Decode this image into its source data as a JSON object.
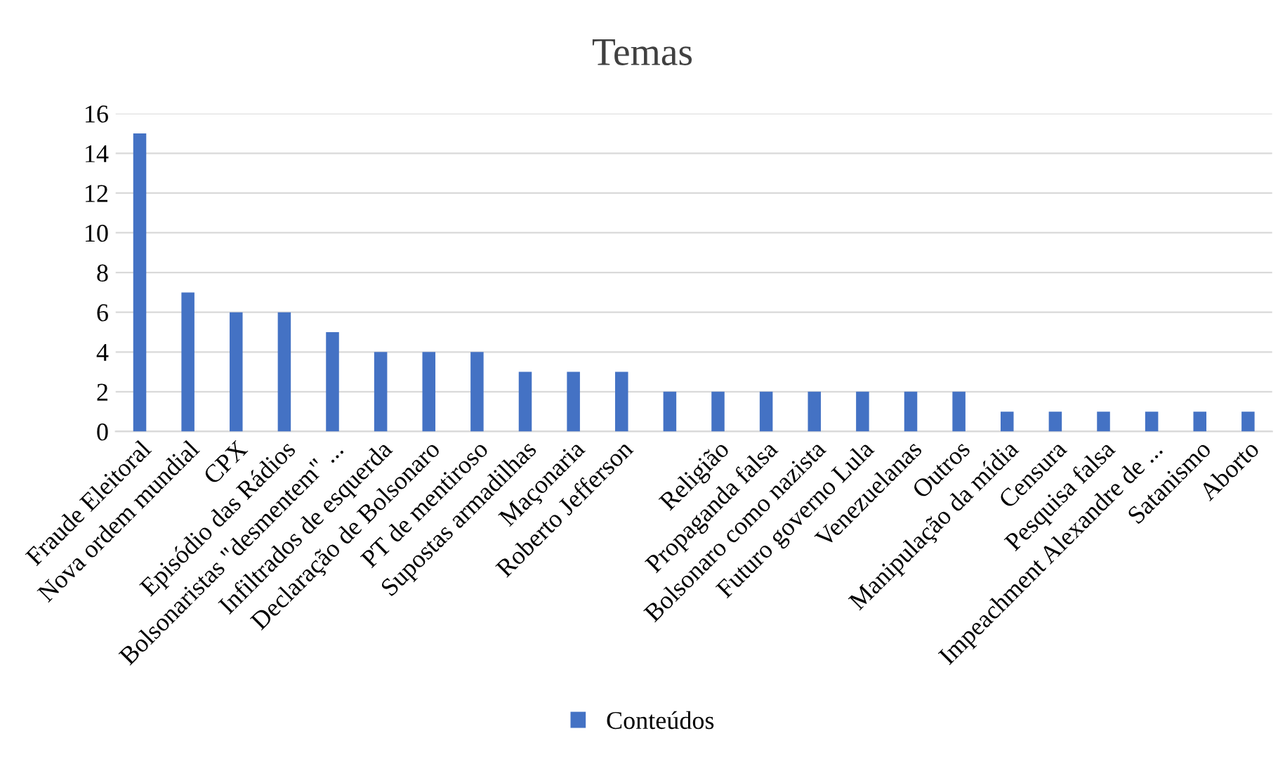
{
  "chart_data": {
    "type": "bar",
    "title": "Temas",
    "categories": [
      "Fraude Eleitoral",
      "Nova ordem mundial",
      "CPX",
      "Episódio das Rádios",
      "Bolsonaristas \"desmentem\" ...",
      "Infiltrados de esquerda",
      "Declaração de Bolsonaro",
      "PT de mentiroso",
      "Supostas armadilhas",
      "Maçonaria",
      "Roberto Jefferson",
      null,
      "Religião",
      "Propaganda falsa",
      "Bolsonaro como nazista",
      "Futuro governo Lula",
      "Venezuelanas",
      "Outros",
      "Manipulação da mídia",
      "Censura",
      "Pesquisa falsa",
      "Impeachment Alexandre de ...",
      "Satanismo",
      "Aborto"
    ],
    "series": [
      {
        "name": "Conteúdos",
        "color": "#4472c4",
        "values": [
          15,
          7,
          6,
          6,
          5,
          4,
          4,
          4,
          3,
          3,
          3,
          2,
          2,
          2,
          2,
          2,
          2,
          2,
          1,
          1,
          1,
          1,
          1,
          1
        ]
      }
    ],
    "ylim": [
      0,
      16
    ],
    "yticks": [
      0,
      2,
      4,
      6,
      8,
      10,
      12,
      14,
      16
    ],
    "grid": "y",
    "legend": "bottom"
  }
}
